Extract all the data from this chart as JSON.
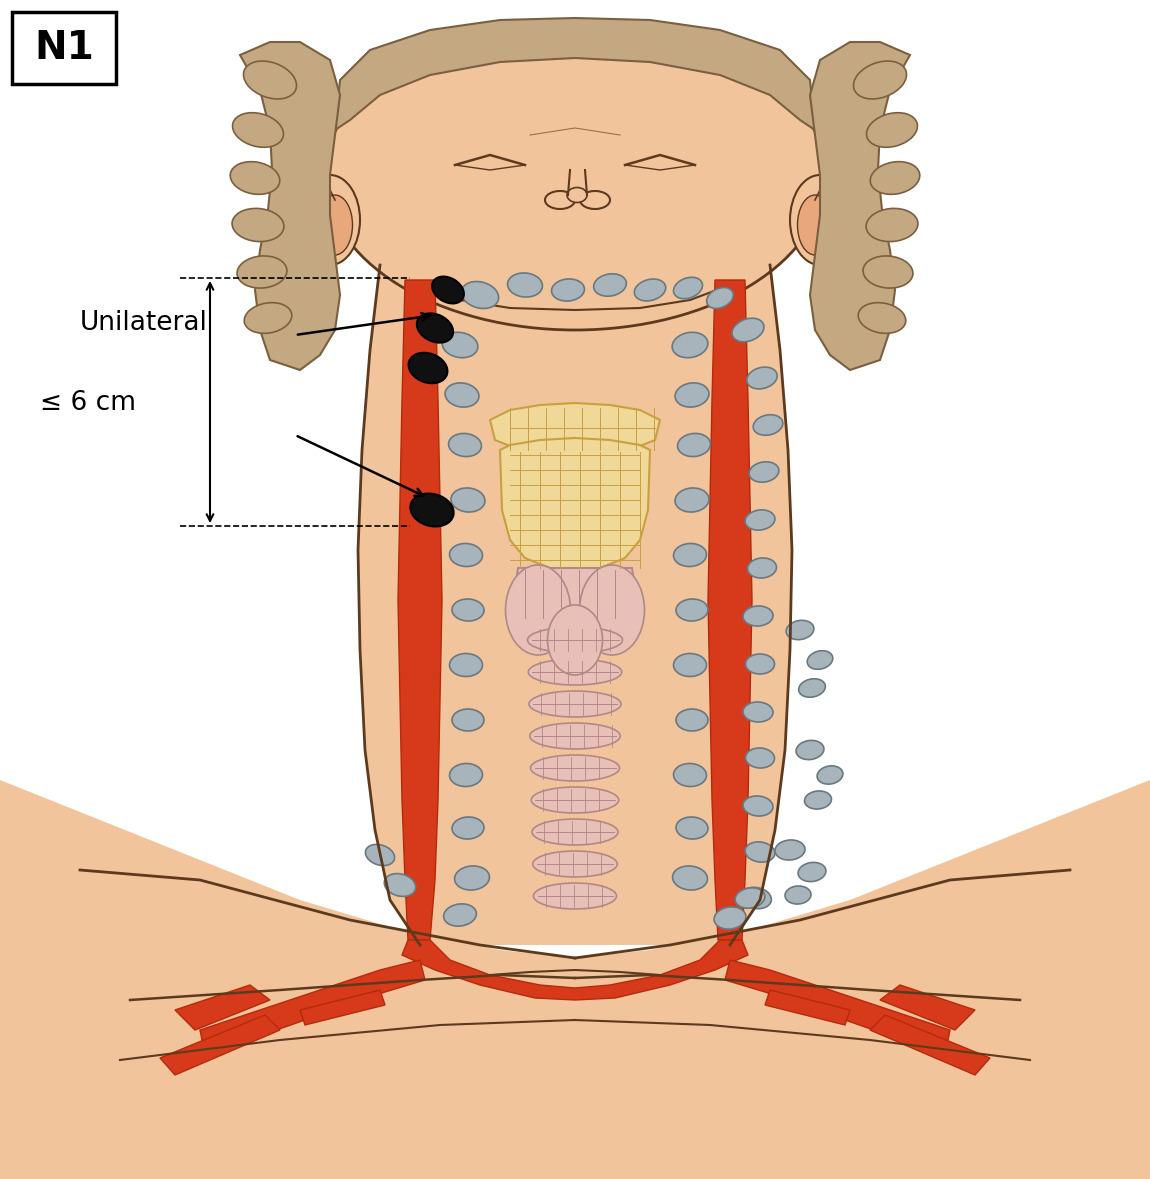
{
  "title": "N1",
  "label_unilateral": "Unilateral",
  "label_6cm": "≤ 6 cm",
  "skin_color": "#F2C49B",
  "skin_dark": "#E8A87C",
  "skin_outline": "#5C3A1E",
  "hair_color": "#C4A882",
  "hair_outline": "#7A6040",
  "red_vessel": "#D63A1A",
  "red_vessel_dark": "#B52A0A",
  "gray_ln": "#A8B4BC",
  "gray_ln_out": "#6A7880",
  "black_ln": "#101010",
  "throat_pink": "#E8C0B8",
  "throat_out": "#B08888",
  "cart_yellow": "#F0D898",
  "cart_out": "#C8A040",
  "trachea_pink": "#DDAAA0",
  "trachea_out": "#B08080",
  "background": "#FFFFFF",
  "text_color": "#111111"
}
